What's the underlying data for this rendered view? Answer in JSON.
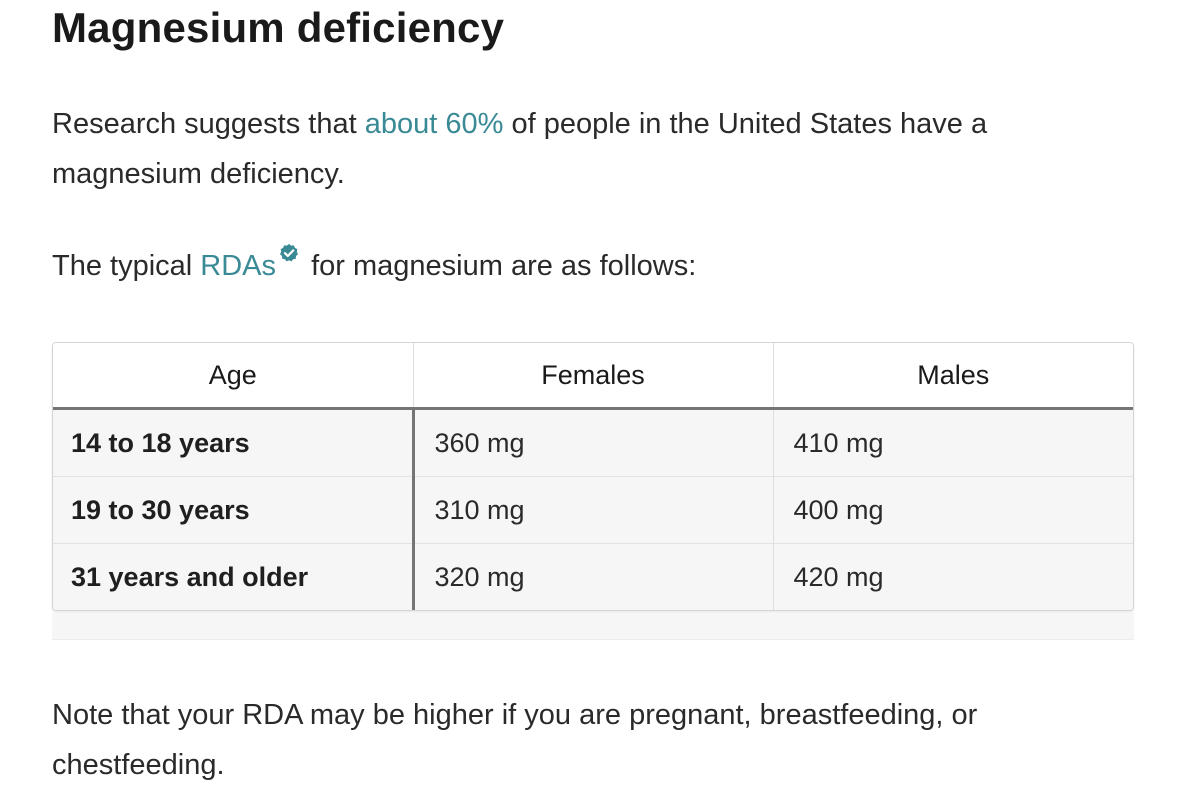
{
  "heading": "Magnesium deficiency",
  "intro": {
    "before": "Research suggests that ",
    "link": "about 60%",
    "after": " of people in the United States have a magnesium deficiency."
  },
  "rda_line": {
    "before": "The typical ",
    "link": "RDAs",
    "after": " for magnesium are as follows:"
  },
  "table": {
    "headers": [
      "Age",
      "Females",
      "Males"
    ],
    "rows": [
      [
        "14 to 18 years",
        "360 mg",
        "410 mg"
      ],
      [
        "19 to 30 years",
        "310 mg",
        "400 mg"
      ],
      [
        "31 years and older",
        "320 mg",
        "420 mg"
      ]
    ]
  },
  "note": "Note that your RDA may be higher if you are pregnant, breastfeeding, or chestfeeding.",
  "colors": {
    "link": "#3a8a95",
    "verified_badge": "#3a8a95"
  },
  "icons": {
    "verified": "verified-check-icon"
  }
}
